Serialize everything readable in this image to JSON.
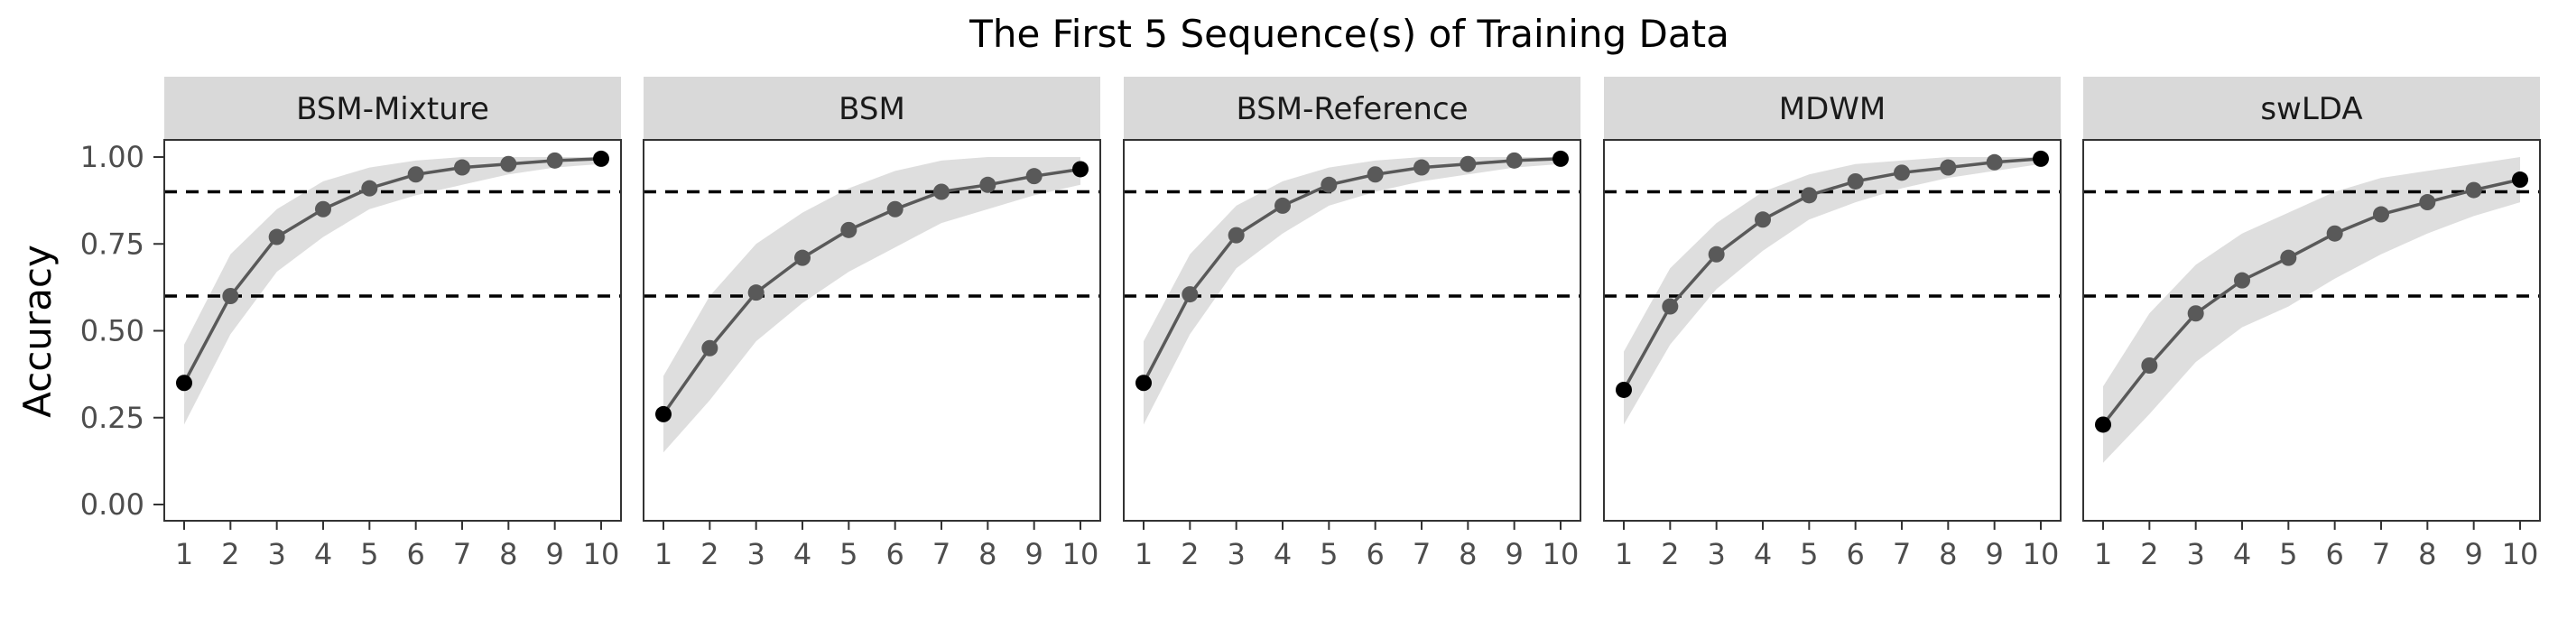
{
  "chart_data": {
    "type": "line",
    "title": "The First 5 Sequence(s) of Training Data",
    "xlabel": "",
    "ylabel": "Accuracy",
    "x": [
      1,
      2,
      3,
      4,
      5,
      6,
      7,
      8,
      9,
      10
    ],
    "x_ticks": [
      "1",
      "2",
      "3",
      "4",
      "5",
      "6",
      "7",
      "8",
      "9",
      "10"
    ],
    "ylim": [
      -0.04,
      1.08
    ],
    "y_ticks": [
      "0.00",
      "0.25",
      "0.50",
      "0.75",
      "1.00"
    ],
    "y_tick_values": [
      0,
      0.25,
      0.5,
      0.75,
      1.0
    ],
    "reference_lines": [
      0.6,
      0.9
    ],
    "grid": false,
    "colors": {
      "line": "#595959",
      "point": "#595959",
      "endpoint": "#000000",
      "ribbon": "#dedede",
      "strip": "#d9d9d9",
      "refline": "#000000"
    },
    "panels": [
      {
        "name": "BSM-Mixture",
        "values": [
          0.35,
          0.6,
          0.77,
          0.85,
          0.91,
          0.95,
          0.97,
          0.98,
          0.99,
          0.995
        ],
        "lower": [
          0.23,
          0.49,
          0.67,
          0.77,
          0.85,
          0.89,
          0.92,
          0.95,
          0.97,
          0.98
        ],
        "upper": [
          0.46,
          0.72,
          0.85,
          0.93,
          0.97,
          0.99,
          1.0,
          1.0,
          1.0,
          1.0
        ]
      },
      {
        "name": "BSM",
        "values": [
          0.26,
          0.45,
          0.61,
          0.71,
          0.79,
          0.85,
          0.9,
          0.92,
          0.945,
          0.965
        ],
        "lower": [
          0.15,
          0.3,
          0.47,
          0.58,
          0.67,
          0.74,
          0.81,
          0.85,
          0.89,
          0.92
        ],
        "upper": [
          0.37,
          0.6,
          0.75,
          0.84,
          0.91,
          0.96,
          0.99,
          1.0,
          1.0,
          1.0
        ]
      },
      {
        "name": "BSM-Reference",
        "values": [
          0.35,
          0.605,
          0.775,
          0.86,
          0.92,
          0.95,
          0.97,
          0.98,
          0.99,
          0.995
        ],
        "lower": [
          0.23,
          0.49,
          0.68,
          0.78,
          0.86,
          0.9,
          0.93,
          0.95,
          0.97,
          0.98
        ],
        "upper": [
          0.47,
          0.72,
          0.86,
          0.93,
          0.97,
          0.99,
          1.0,
          1.0,
          1.0,
          1.0
        ]
      },
      {
        "name": "MDWM",
        "values": [
          0.33,
          0.57,
          0.72,
          0.82,
          0.89,
          0.93,
          0.955,
          0.97,
          0.985,
          0.995
        ],
        "lower": [
          0.23,
          0.46,
          0.62,
          0.73,
          0.82,
          0.87,
          0.91,
          0.94,
          0.96,
          0.98
        ],
        "upper": [
          0.44,
          0.68,
          0.81,
          0.9,
          0.95,
          0.98,
          0.99,
          1.0,
          1.0,
          1.0
        ]
      },
      {
        "name": "swLDA",
        "values": [
          0.23,
          0.4,
          0.55,
          0.645,
          0.71,
          0.78,
          0.835,
          0.87,
          0.905,
          0.935
        ],
        "lower": [
          0.12,
          0.26,
          0.41,
          0.51,
          0.57,
          0.65,
          0.72,
          0.78,
          0.83,
          0.87
        ],
        "upper": [
          0.34,
          0.55,
          0.69,
          0.78,
          0.84,
          0.9,
          0.94,
          0.96,
          0.98,
          1.0
        ]
      }
    ]
  }
}
